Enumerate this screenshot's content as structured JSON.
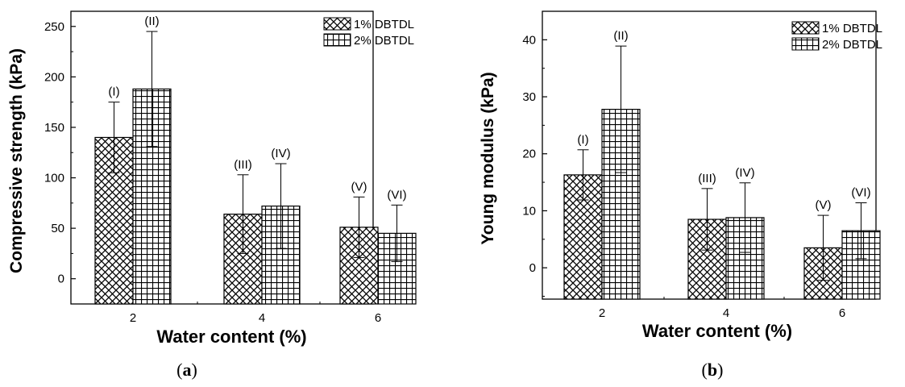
{
  "chart_data": [
    {
      "type": "bar",
      "panel": "(a)",
      "xlabel": "Water content (%)",
      "ylabel": "Compressive strength (kPa)",
      "categories": [
        "2",
        "4",
        "6"
      ],
      "ylim": [
        -25,
        265
      ],
      "yticks": [
        0,
        50,
        100,
        150,
        200,
        250
      ],
      "series": [
        {
          "name": "1% DBTDL",
          "values": [
            140,
            64,
            51
          ],
          "errors": [
            35,
            39,
            30
          ],
          "labels": [
            "(I)",
            "(III)",
            "(V)"
          ],
          "pattern": "crosshatch"
        },
        {
          "name": "2% DBTDL",
          "values": [
            188,
            72,
            45
          ],
          "errors": [
            57,
            42,
            28
          ],
          "labels": [
            "(II)",
            "(IV)",
            "(VI)"
          ],
          "pattern": "grid"
        }
      ],
      "legend_position": "top-right"
    },
    {
      "type": "bar",
      "panel": "(b)",
      "xlabel": "Water content (%)",
      "ylabel": "Young modulus (kPa)",
      "categories": [
        "2",
        "4",
        "6"
      ],
      "ylim": [
        -5.5,
        45
      ],
      "yticks": [
        0,
        10,
        20,
        30,
        40
      ],
      "series": [
        {
          "name": "1% DBTDL",
          "values": [
            16.3,
            8.5,
            3.5
          ],
          "errors": [
            4.4,
            5.4,
            5.7
          ],
          "labels": [
            "(I)",
            "(III)",
            "(V)"
          ],
          "pattern": "crosshatch"
        },
        {
          "name": "2% DBTDL",
          "values": [
            27.8,
            8.8,
            6.5
          ],
          "errors": [
            11.1,
            6.1,
            4.9
          ],
          "labels": [
            "(II)",
            "(IV)",
            "(VI)"
          ],
          "pattern": "grid"
        }
      ],
      "legend_position": "top-right"
    }
  ]
}
